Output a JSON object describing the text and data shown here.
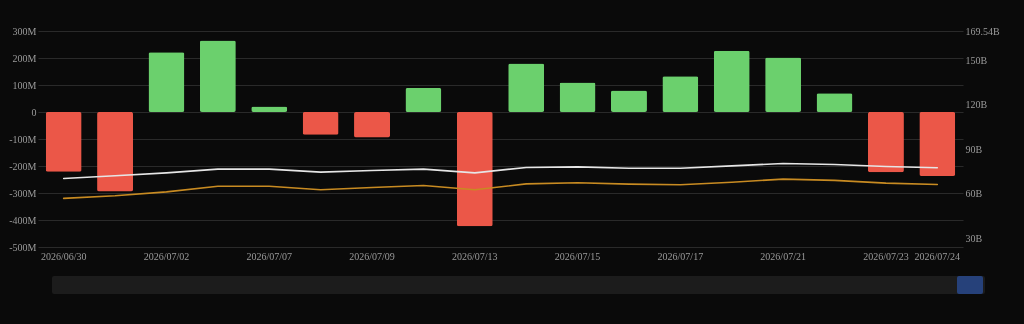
{
  "chart_data": {
    "type": "bar",
    "categories": [
      "2026/06/30",
      null,
      "2026/07/02",
      null,
      "2026/07/07",
      null,
      "2026/07/09",
      null,
      "2026/07/13",
      null,
      "2026/07/15",
      null,
      "2026/07/17",
      null,
      "2026/07/21",
      null,
      "2026/07/23",
      "2026/07/24"
    ],
    "series": [
      {
        "values": [
          -221,
          -294,
          221,
          265,
          20,
          -84,
          -94,
          89,
          -423,
          180,
          109,
          80,
          132,
          227,
          202,
          69,
          -223,
          -237
        ],
        "colors": [
          "#eb5748",
          "#eb5748",
          "#6bd06d",
          "#6bd06d",
          "#6bd06d",
          "#eb5748",
          "#eb5748",
          "#6bd06d",
          "#eb5748",
          "#6bd06d",
          "#6bd06d",
          "#6bd06d",
          "#6bd06d",
          "#6bd06d",
          "#6bd06d",
          "#6bd06d",
          "#eb5748",
          "#eb5748"
        ]
      },
      {
        "type": "line",
        "axis": "y2",
        "color": "#e6e6e6",
        "values": [
          70.3,
          72.1,
          74.1,
          76.6,
          76.6,
          74.6,
          75.7,
          76.6,
          74.1,
          77.7,
          78.1,
          77.2,
          77.2,
          78.8,
          80.4,
          79.7,
          78.4,
          77.5
        ]
      },
      {
        "type": "line",
        "axis": "y2",
        "color": "#c88b22",
        "values": [
          56.9,
          58.7,
          61.3,
          65.1,
          65.1,
          62.7,
          64.2,
          65.6,
          62.7,
          66.7,
          67.4,
          66.5,
          66.1,
          67.8,
          69.9,
          69.0,
          67.2,
          66.3
        ]
      }
    ],
    "ylim": [
      -500,
      300
    ],
    "yticks": [
      {
        "value": -500,
        "label": "-500M"
      },
      {
        "value": -400,
        "label": "-400M"
      },
      {
        "value": -300,
        "label": "-300M"
      },
      {
        "value": -200,
        "label": "-200M"
      },
      {
        "value": -100,
        "label": "-100M"
      },
      0,
      {
        "value": 100,
        "label": "100M"
      },
      {
        "value": 200,
        "label": "200M"
      },
      {
        "value": 300,
        "label": "300M"
      }
    ],
    "y2lim": [
      24.2,
      169.54
    ],
    "y2ticks": [
      {
        "value": 30,
        "label": "30B"
      },
      {
        "value": 60,
        "label": "60B"
      },
      {
        "value": 90,
        "label": "90B"
      },
      {
        "value": 120,
        "label": "120B"
      },
      {
        "value": 150,
        "label": "150B"
      },
      {
        "value": 169.54,
        "label": "169.54B"
      }
    ],
    "grid": "y"
  }
}
